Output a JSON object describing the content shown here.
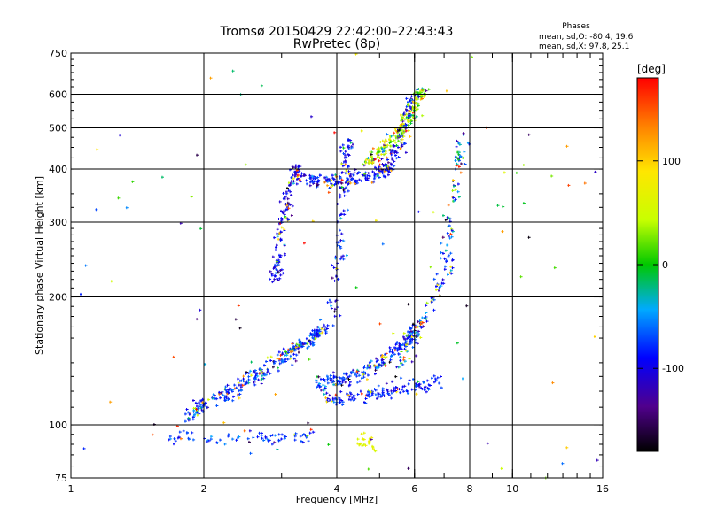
{
  "chart_data": {
    "type": "scatter",
    "title": "Tromsø 20150429 22:42:00–22:43:43",
    "subtitle": "RwPretec (8p)",
    "xlabel": "Frequency [MHz]",
    "ylabel": "Stationary phase Virtual Height [km]",
    "x_scale": "log",
    "y_scale": "log",
    "xlim": [
      1,
      16
    ],
    "ylim": [
      75,
      750
    ],
    "x_ticks": [
      1,
      2,
      4,
      6,
      8,
      10,
      16
    ],
    "x_tick_labels": [
      "1",
      "2",
      "4",
      "6",
      "8",
      "10",
      "16"
    ],
    "x_grid": [
      2,
      4,
      6,
      8,
      10
    ],
    "y_ticks": [
      75,
      100,
      200,
      300,
      400,
      500,
      600,
      750
    ],
    "y_tick_labels": [
      "75",
      "100",
      "200",
      "300",
      "400",
      "500",
      "600",
      "750"
    ],
    "y_grid": [
      100,
      200,
      300,
      400,
      500,
      600
    ],
    "grid": true,
    "stats": {
      "header": "Phases",
      "line_o": "mean, sd,O: -80.4, 19.6",
      "line_x": "mean, sd,X:  97.8, 25.1"
    },
    "colorbar": {
      "label": "[deg]",
      "range": [
        -180,
        180
      ],
      "ticks": [
        100,
        0,
        -100
      ],
      "tick_labels": [
        "100",
        "0",
        "-100"
      ]
    },
    "series": [
      {
        "phase_center": -75,
        "phase_spread": 25,
        "random_fraction": 0.2,
        "count": 80,
        "points": [
          [
            1.65,
            93
          ],
          [
            2.6,
            93
          ],
          [
            3.6,
            93
          ]
        ]
      },
      {
        "phase_center": 70,
        "phase_spread": 20,
        "random_fraction": 0.1,
        "count": 25,
        "points": [
          [
            4.5,
            91
          ],
          [
            4.8,
            92
          ]
        ]
      },
      {
        "phase_center": -80,
        "phase_spread": 35,
        "random_fraction": 0.25,
        "count": 320,
        "points": [
          [
            1.85,
            105
          ],
          [
            2.0,
            112
          ],
          [
            2.3,
            120
          ],
          [
            2.6,
            130
          ],
          [
            2.9,
            140
          ],
          [
            3.2,
            150
          ],
          [
            3.5,
            160
          ],
          [
            3.8,
            170
          ]
        ]
      },
      {
        "phase_center": -80,
        "phase_spread": 35,
        "random_fraction": 0.25,
        "count": 220,
        "points": [
          [
            3.6,
            125
          ],
          [
            4.0,
            127
          ],
          [
            4.5,
            132
          ],
          [
            5.0,
            140
          ],
          [
            5.5,
            150
          ],
          [
            5.8,
            160
          ],
          [
            6.0,
            170
          ]
        ]
      },
      {
        "phase_center": -85,
        "phase_spread": 25,
        "random_fraction": 0.15,
        "count": 140,
        "points": [
          [
            3.8,
            115
          ],
          [
            4.4,
            116
          ],
          [
            5.0,
            119
          ],
          [
            5.6,
            121
          ],
          [
            6.2,
            124
          ],
          [
            6.8,
            127
          ]
        ]
      },
      {
        "phase_center": -100,
        "phase_spread": 30,
        "random_fraction": 0.15,
        "count": 150,
        "points": [
          [
            2.9,
            210
          ],
          [
            2.95,
            260
          ],
          [
            3.0,
            300
          ],
          [
            3.1,
            345
          ],
          [
            3.2,
            385
          ],
          [
            3.3,
            395
          ]
        ]
      },
      {
        "phase_center": -90,
        "phase_spread": 30,
        "random_fraction": 0.2,
        "count": 260,
        "points": [
          [
            3.4,
            380
          ],
          [
            3.8,
            375
          ],
          [
            4.3,
            378
          ],
          [
            4.8,
            385
          ],
          [
            5.2,
            400
          ],
          [
            5.5,
            450
          ],
          [
            5.7,
            520
          ],
          [
            5.9,
            600
          ]
        ]
      },
      {
        "phase_center": 40,
        "phase_spread": 60,
        "random_fraction": 0.35,
        "count": 200,
        "points": [
          [
            4.6,
            410
          ],
          [
            5.0,
            440
          ],
          [
            5.4,
            470
          ],
          [
            5.8,
            520
          ],
          [
            6.0,
            570
          ],
          [
            6.3,
            610
          ]
        ]
      },
      {
        "phase_center": -90,
        "phase_spread": 30,
        "random_fraction": 0.2,
        "count": 100,
        "points": [
          [
            3.9,
            170
          ],
          [
            4.0,
            230
          ],
          [
            4.1,
            300
          ],
          [
            4.15,
            380
          ],
          [
            4.2,
            430
          ],
          [
            4.3,
            470
          ]
        ]
      },
      {
        "phase_center": -70,
        "phase_spread": 60,
        "random_fraction": 0.4,
        "count": 160,
        "points": [
          [
            5.5,
            130
          ],
          [
            6.0,
            160
          ],
          [
            6.5,
            190
          ],
          [
            7.0,
            230
          ],
          [
            7.2,
            300
          ],
          [
            7.5,
            400
          ],
          [
            7.8,
            500
          ]
        ]
      },
      {
        "phase_center": 0,
        "phase_spread": 90,
        "random_fraction": 0.8,
        "count": 95,
        "points": [
          [
            1.0,
            75
          ],
          [
            16.0,
            750
          ]
        ]
      }
    ]
  }
}
